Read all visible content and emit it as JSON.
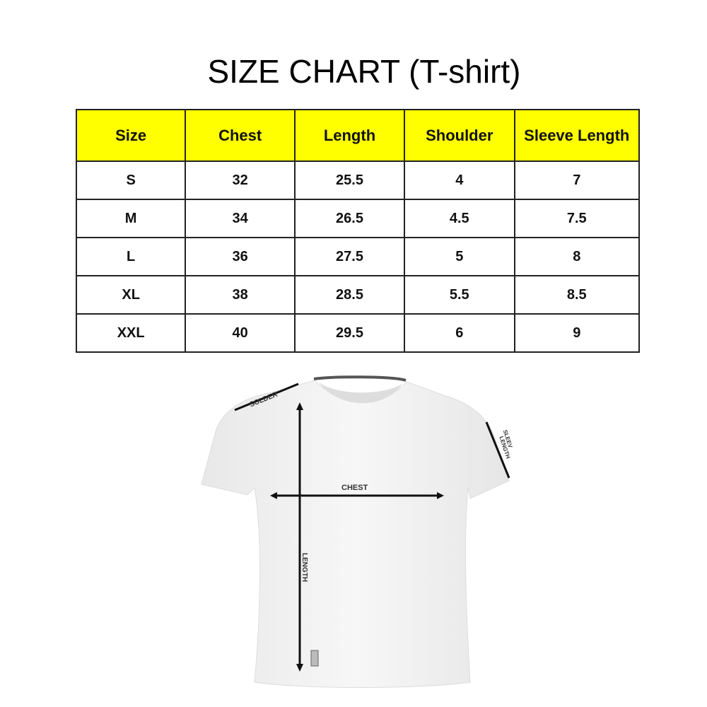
{
  "title": "SIZE CHART (T-shirt)",
  "table": {
    "headers": [
      "Size",
      "Chest",
      "Length",
      "Shoulder",
      "Sleeve Length"
    ],
    "rows": [
      [
        "S",
        "32",
        "25.5",
        "4",
        "7"
      ],
      [
        "M",
        "34",
        "26.5",
        "4.5",
        "7.5"
      ],
      [
        "L",
        "36",
        "27.5",
        "5",
        "8"
      ],
      [
        "XL",
        "38",
        "28.5",
        "5.5",
        "8.5"
      ],
      [
        "XXL",
        "40",
        "29.5",
        "6",
        "9"
      ]
    ]
  },
  "colors": {
    "header_bg": "#ffff00"
  },
  "diagram": {
    "shoulder_label": "SOLDER",
    "sleeve_label_line1": "SLEEV",
    "sleeve_label_line2": "LENGTH",
    "chest_label": "CHEST",
    "length_label": "LENGTH"
  }
}
